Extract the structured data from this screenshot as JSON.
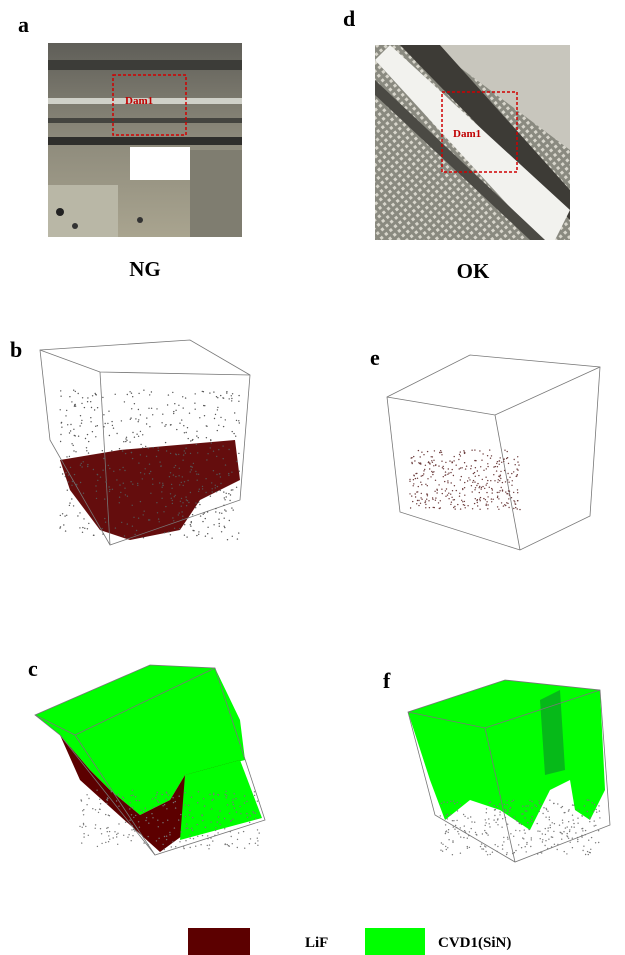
{
  "panels": [
    {
      "label": "a",
      "caption": "NG",
      "annotation": "Dam1"
    },
    {
      "label": "b"
    },
    {
      "label": "c"
    },
    {
      "label": "d",
      "caption": "OK",
      "annotation": "Dam1"
    },
    {
      "label": "e"
    },
    {
      "label": "f"
    }
  ],
  "legend": [
    {
      "name": "LiF",
      "color": "#5c0000"
    },
    {
      "name": "CVD1(SiN)",
      "color": "#00ff00"
    }
  ]
}
